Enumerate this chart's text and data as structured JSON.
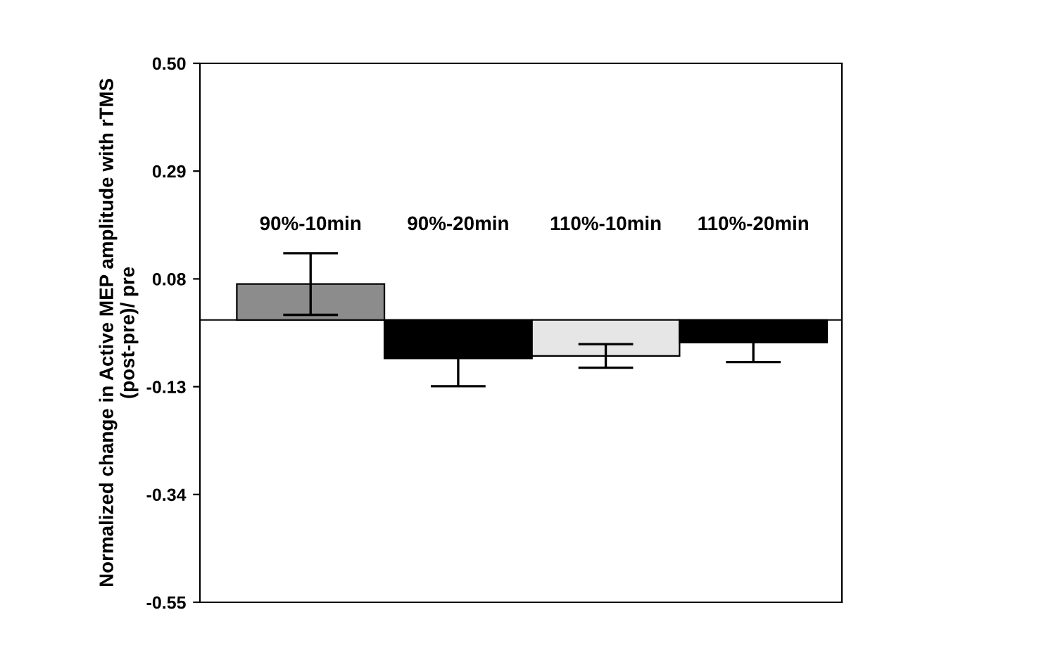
{
  "chart_data": {
    "type": "bar",
    "ylabel": "Normalized change in Active MEP amplitude with rTMS\n(post-pre)/ pre",
    "categories": [
      "90%-10min",
      "90%-20min",
      "110%-10min",
      "110%-20min"
    ],
    "values": [
      0.07,
      -0.075,
      -0.07,
      -0.044
    ],
    "errors": [
      0.06,
      0.054,
      0.023,
      0.038
    ],
    "colors": [
      "#8c8c8c",
      "#000000",
      "#e6e6e6",
      "#000000"
    ],
    "ylim": [
      -0.55,
      0.5
    ],
    "yticks": [
      -0.55,
      -0.34,
      -0.13,
      0.08,
      0.29,
      {
        "value": 0.5,
        "label": "0.50"
      }
    ],
    "ref_lines": [
      {
        "axis": "y",
        "value": 0,
        "color": "#000000"
      }
    ],
    "grid": false,
    "legend": false
  }
}
